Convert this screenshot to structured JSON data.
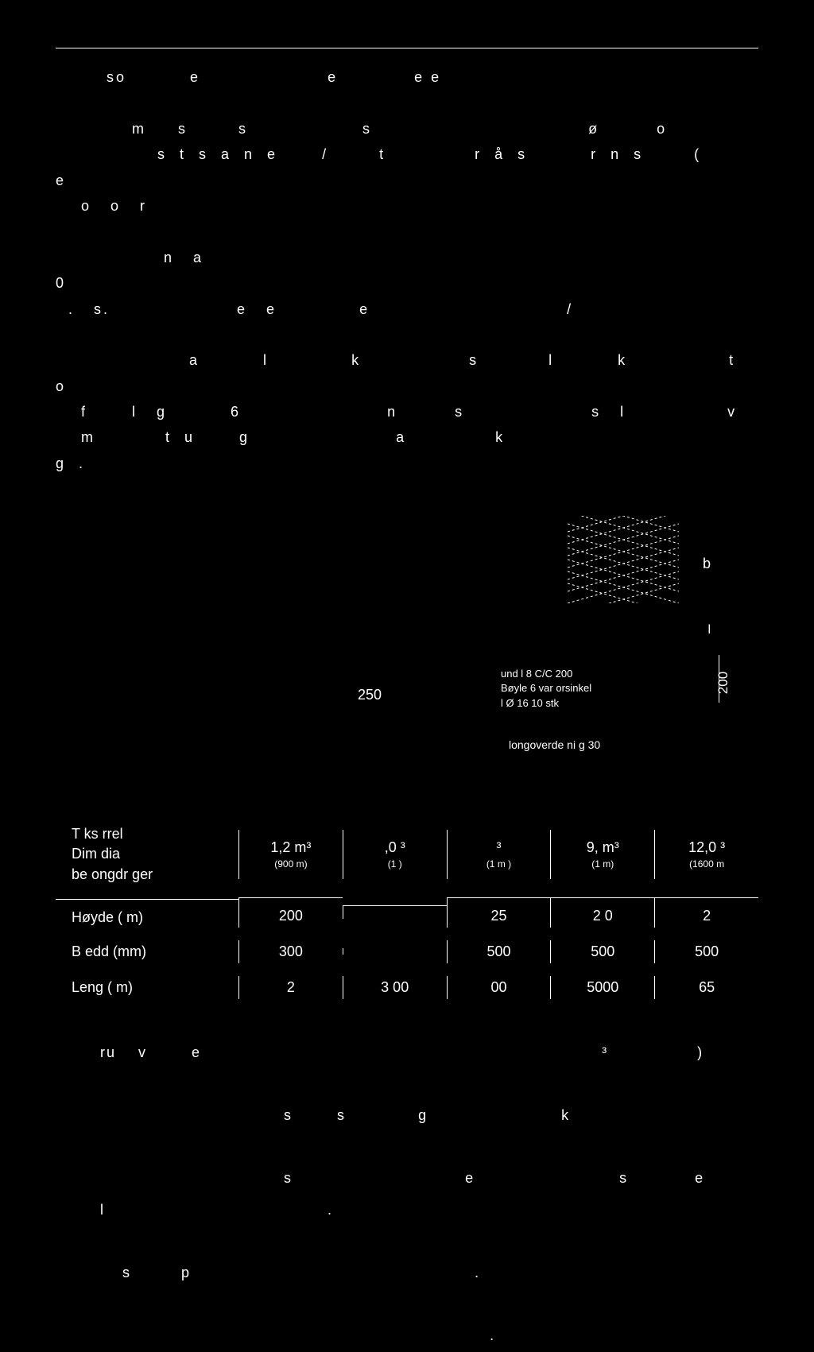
{
  "top_section": {
    "lines": [
      "        so          e                    e            e e",
      "",
      "            m     s        s                  s                                  ø         o",
      "                s  t  s  a  n  e       /        t              r  å  s          r  n  s        (                        e",
      "    o   o   r",
      "",
      "                 n   a                                                                                                      0",
      "  .   s.                    e   e             e                               /",
      "",
      "                     a          l             k                 s           l          k                t                o",
      "    f       l   g          6                       n         s                    s   l                v",
      "    m           t  u       g                       a              k                                            g  ."
    ]
  },
  "diagram": {
    "center_number": "250",
    "right_labels": [
      "und    l    8 C/C 200",
      "Bøyle     6 var   orsinkel",
      "l Ø 16 10 stk"
    ],
    "vertical_label": "200",
    "caption": "longoverde  ni  g 30",
    "letter_b": "b",
    "letter_l": "l"
  },
  "table": {
    "header_label_line1": "T    ks    rrel",
    "header_label_line2": "Dim                    dia",
    "header_label_line3": "be  ongdr   ger",
    "columns": [
      {
        "top": "1,2 m³",
        "bottom": "(900    m)"
      },
      {
        "top": ",0    ³",
        "bottom": "(1            )"
      },
      {
        "top": "³",
        "bottom": "(1        m  )"
      },
      {
        "top": "9,    m³",
        "bottom": "(1            m)"
      },
      {
        "top": "12,0    ³",
        "bottom": "(1600    m"
      }
    ],
    "rows": [
      {
        "label": "Høyde (   m)",
        "values": [
          "200",
          "",
          "25",
          "2 0",
          "2"
        ]
      },
      {
        "label": "B  edd   (mm)",
        "values": [
          "300",
          "",
          "500",
          "500",
          "500"
        ]
      },
      {
        "label": "Leng      (   m)",
        "values": [
          "2",
          "3  00",
          "00",
          "5000",
          "65"
        ]
      }
    ]
  },
  "bottom_section": {
    "lines": [
      "        ru    v        e                                                                        ³                )",
      "",
      "                                         s        s             g                        k",
      "",
      "                                         s                               e                          s            e",
      "        l                                        .",
      "",
      "            s         p                                                   .",
      "",
      "                                                                              ."
    ]
  }
}
